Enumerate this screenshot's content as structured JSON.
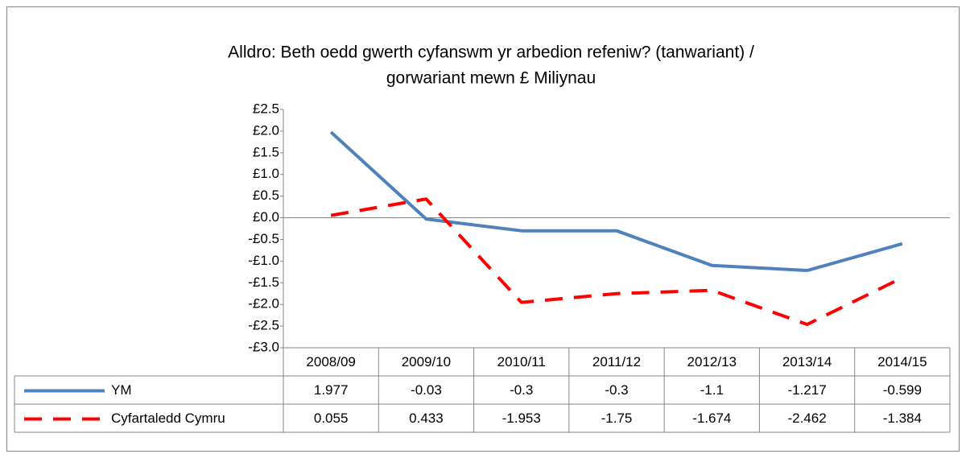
{
  "chart_data": {
    "type": "line",
    "title": [
      "Alldro: Beth oedd gwerth cyfanswm yr arbedion refeniw? (tanwariant) /",
      "gorwariant mewn £ Miliynau"
    ],
    "categories": [
      "2008/09",
      "2009/10",
      "2010/11",
      "2011/12",
      "2012/13",
      "2013/14",
      "2014/15"
    ],
    "series": [
      {
        "name": "YM",
        "color": "#4f81bd",
        "dashed": false,
        "values": [
          1.977,
          -0.03,
          -0.3,
          -0.3,
          -1.1,
          -1.217,
          -0.599
        ]
      },
      {
        "name": "Cyfartaledd Cymru",
        "color": "#ff0000",
        "dashed": true,
        "values": [
          0.055,
          0.433,
          -1.953,
          -1.75,
          -1.674,
          -2.462,
          -1.384
        ]
      }
    ],
    "ylim": [
      -3.0,
      2.5
    ],
    "yticks": [
      {
        "value": 2.5,
        "label": "£2.5"
      },
      {
        "value": 2.0,
        "label": "£2.0"
      },
      {
        "value": 1.5,
        "label": "£1.5"
      },
      {
        "value": 1.0,
        "label": "£1.0"
      },
      {
        "value": 0.5,
        "label": "£0.5"
      },
      {
        "value": 0,
        "label": "£0.0"
      },
      {
        "value": -0.5,
        "label": "-£0.5"
      },
      {
        "value": -1.0,
        "label": "-£1.0"
      },
      {
        "value": -1.5,
        "label": "-£1.5"
      },
      {
        "value": -2.0,
        "label": "-£2.0"
      },
      {
        "value": -2.5,
        "label": "-£2.5"
      },
      {
        "value": -3.0,
        "label": "-£3.0"
      }
    ],
    "grid": false,
    "data_table": true
  }
}
